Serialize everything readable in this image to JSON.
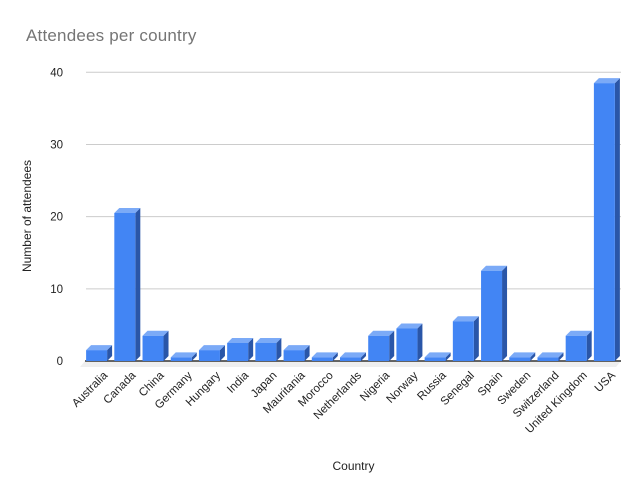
{
  "chart_data": {
    "type": "bar",
    "title": "Attendees per country",
    "xlabel": "Country",
    "ylabel": "Number of attendees",
    "categories": [
      "Australia",
      "Canada",
      "China",
      "Germany",
      "Hungary",
      "India",
      "Japan",
      "Mauritania",
      "Morocco",
      "Netherlands",
      "Nigeria",
      "Norway",
      "Russia",
      "Senegal",
      "Spain",
      "Sweden",
      "Switzerland",
      "United Kingdom",
      "USA"
    ],
    "values": [
      1.5,
      20.5,
      3.5,
      0.5,
      1.5,
      2.5,
      2.5,
      1.5,
      0.5,
      0.5,
      3.5,
      4.5,
      0.5,
      5.5,
      12.5,
      0.5,
      0.5,
      3.5,
      38.5
    ],
    "ylim": [
      0,
      40
    ],
    "yticks": [
      0,
      10,
      20,
      30,
      40
    ],
    "grid": true,
    "legend": "none",
    "bar_style": "3d-oblique",
    "colors": {
      "bar_front": "#4285f4",
      "bar_top": "#7baaf7",
      "bar_side": "#2a56a8",
      "gridline": "#cccccc",
      "baseline": "#333333",
      "floor": "#efefef",
      "title_text": "#757575",
      "axis_text": "#222222"
    }
  }
}
